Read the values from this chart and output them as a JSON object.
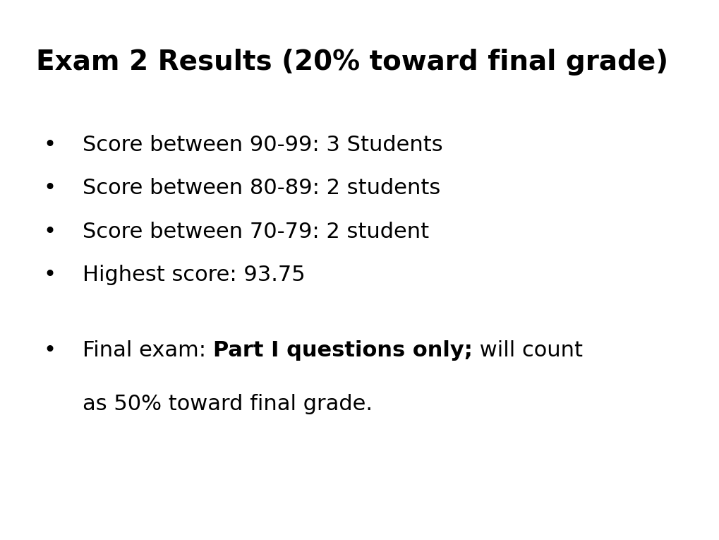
{
  "title": "Exam 2 Results (20% toward final grade)",
  "title_fontsize": 28,
  "title_fontweight": "bold",
  "background_color": "#ffffff",
  "text_color": "#000000",
  "fontsize": 22,
  "bullet": "•",
  "bullet_items": [
    "Score between 90-99: 3 Students",
    "Score between 80-89: 2 students",
    "Score between 70-79: 2 student",
    "Highest score: 93.75"
  ],
  "final_line1_normal1": "Final exam: ",
  "final_line1_bold": "Part I questions only;",
  "final_line1_normal2": " will count",
  "final_line2": "as 50% toward final grade."
}
